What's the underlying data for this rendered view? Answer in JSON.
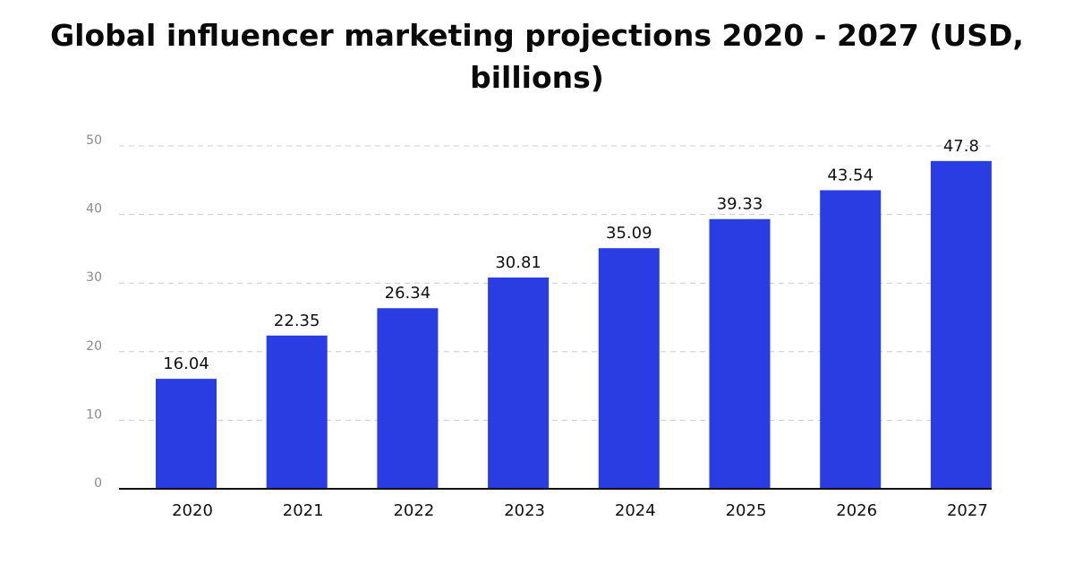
{
  "chart_data": {
    "type": "bar",
    "title": "Global influencer marketing projections 2020 - 2027 (USD, billions)",
    "title_lines": [
      "Global influencer marketing projections 2020 - 2027 (USD,",
      "billions)"
    ],
    "categories": [
      "2020",
      "2021",
      "2022",
      "2023",
      "2024",
      "2025",
      "2026",
      "2027"
    ],
    "values": [
      16.04,
      22.35,
      26.34,
      30.81,
      35.09,
      39.33,
      43.54,
      47.8
    ],
    "data_labels": [
      "16.04",
      "22.35",
      "26.34",
      "30.81",
      "35.09",
      "39.33",
      "43.54",
      "47.8"
    ],
    "xlabel": "",
    "ylabel": "",
    "ylim": [
      0,
      50
    ],
    "yticks": [
      0,
      10,
      20,
      30,
      40,
      50
    ],
    "grid": true,
    "legend": "none",
    "colors": {
      "bar": "#2a3de3",
      "grid": "#cccccc",
      "axis": "#111111",
      "tick_label": "#8a8a8a",
      "label": "#111111"
    }
  }
}
